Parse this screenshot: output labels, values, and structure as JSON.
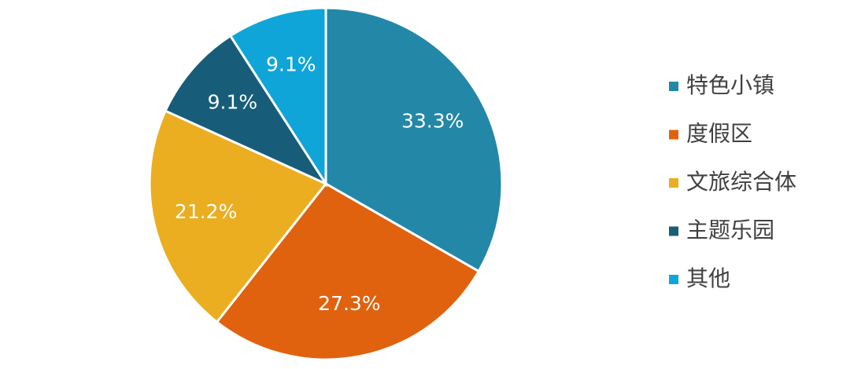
{
  "chart_data": {
    "type": "pie",
    "categories": [
      "特色小镇",
      "度假区",
      "文旅综合体",
      "主题乐园",
      "其他"
    ],
    "values": [
      33.3,
      27.3,
      21.2,
      9.1,
      9.1
    ],
    "value_labels": [
      "33.3%",
      "27.3%",
      "21.2%",
      "9.1%",
      "9.1%"
    ],
    "colors": [
      "#2387a8",
      "#e0620f",
      "#ebae20",
      "#175d79",
      "#10a5d8"
    ],
    "legend": "right"
  }
}
